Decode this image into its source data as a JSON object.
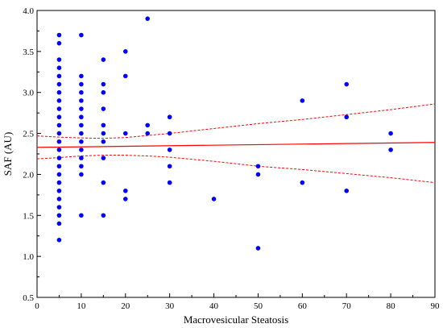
{
  "chart_data": {
    "type": "scatter",
    "title": "",
    "xlabel": "Macrovesicular Steatosis",
    "ylabel": "SAF (AU)",
    "xlim": [
      0,
      90
    ],
    "ylim": [
      0.5,
      4.0
    ],
    "x_ticks": [
      "0",
      "10",
      "20",
      "30",
      "40",
      "50",
      "60",
      "70",
      "80",
      "90"
    ],
    "y_ticks": [
      "0.5",
      "1.0",
      "1.5",
      "2.0",
      "2.5",
      "3.0",
      "3.5",
      "4.0"
    ],
    "grid": false,
    "legend": "none",
    "point_color": "#0000ff",
    "line_color": "#ff0000",
    "points": [
      [
        5,
        3.7
      ],
      [
        5,
        3.6
      ],
      [
        5,
        3.4
      ],
      [
        5,
        3.3
      ],
      [
        5,
        3.2
      ],
      [
        5,
        3.1
      ],
      [
        5,
        3.0
      ],
      [
        5,
        2.9
      ],
      [
        5,
        2.8
      ],
      [
        5,
        2.7
      ],
      [
        5,
        2.6
      ],
      [
        5,
        2.5
      ],
      [
        5,
        2.4
      ],
      [
        5,
        2.3
      ],
      [
        5,
        2.2
      ],
      [
        5,
        2.1
      ],
      [
        5,
        2.0
      ],
      [
        5,
        1.9
      ],
      [
        5,
        1.8
      ],
      [
        5,
        1.7
      ],
      [
        5,
        1.6
      ],
      [
        5,
        1.5
      ],
      [
        5,
        1.4
      ],
      [
        5,
        1.2
      ],
      [
        10,
        3.7
      ],
      [
        10,
        3.2
      ],
      [
        10,
        3.1
      ],
      [
        10,
        3.0
      ],
      [
        10,
        2.9
      ],
      [
        10,
        2.8
      ],
      [
        10,
        2.7
      ],
      [
        10,
        2.6
      ],
      [
        10,
        2.5
      ],
      [
        10,
        2.4
      ],
      [
        10,
        2.3
      ],
      [
        10,
        2.2
      ],
      [
        10,
        2.1
      ],
      [
        10,
        2.0
      ],
      [
        10,
        1.5
      ],
      [
        15,
        3.4
      ],
      [
        15,
        3.1
      ],
      [
        15,
        3.0
      ],
      [
        15,
        2.8
      ],
      [
        15,
        2.6
      ],
      [
        15,
        2.5
      ],
      [
        15,
        2.4
      ],
      [
        15,
        2.2
      ],
      [
        15,
        1.9
      ],
      [
        15,
        1.5
      ],
      [
        20,
        3.5
      ],
      [
        20,
        3.2
      ],
      [
        20,
        2.5
      ],
      [
        20,
        1.8
      ],
      [
        20,
        1.7
      ],
      [
        25,
        3.9
      ],
      [
        25,
        2.6
      ],
      [
        25,
        2.5
      ],
      [
        30,
        2.7
      ],
      [
        30,
        2.5
      ],
      [
        30,
        2.3
      ],
      [
        30,
        2.1
      ],
      [
        30,
        1.9
      ],
      [
        40,
        1.7
      ],
      [
        50,
        2.1
      ],
      [
        50,
        2.0
      ],
      [
        50,
        1.1
      ],
      [
        60,
        2.9
      ],
      [
        60,
        1.9
      ],
      [
        70,
        3.1
      ],
      [
        70,
        2.7
      ],
      [
        70,
        1.8
      ],
      [
        80,
        2.5
      ],
      [
        80,
        2.3
      ]
    ],
    "regression": {
      "x": [
        0,
        90
      ],
      "y": [
        2.33,
        2.39
      ]
    },
    "confidence_band": {
      "x": [
        0,
        5,
        10,
        15,
        20,
        25,
        30,
        40,
        50,
        60,
        70,
        80,
        90
      ],
      "upper": [
        2.47,
        2.455,
        2.445,
        2.44,
        2.45,
        2.475,
        2.5,
        2.56,
        2.62,
        2.67,
        2.73,
        2.79,
        2.86
      ],
      "lower": [
        2.19,
        2.205,
        2.225,
        2.235,
        2.235,
        2.225,
        2.21,
        2.16,
        2.1,
        2.06,
        2.01,
        1.96,
        1.9
      ]
    }
  }
}
